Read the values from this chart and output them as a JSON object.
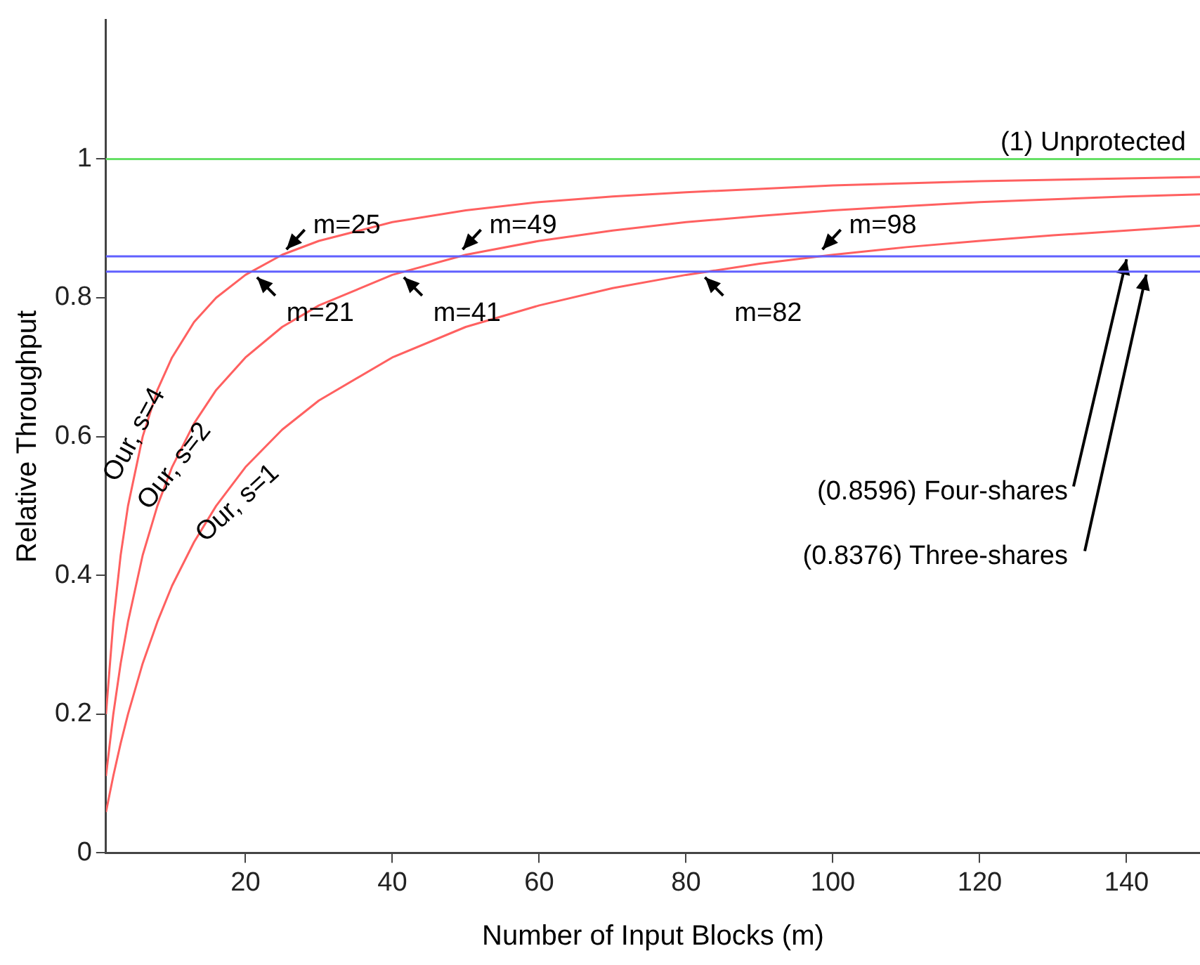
{
  "chart_data": {
    "type": "line",
    "xlabel": "Number of Input Blocks (m)",
    "ylabel": "Relative Throughput",
    "x": [
      1,
      2,
      3,
      4,
      6,
      8,
      10,
      13,
      16,
      20,
      25,
      30,
      40,
      50,
      60,
      70,
      80,
      90,
      100,
      110,
      120,
      130,
      140,
      150
    ],
    "series": [
      {
        "name": "Our, s=4",
        "color": "#ff6060",
        "values": [
          0.2,
          0.333,
          0.429,
          0.5,
          0.6,
          0.667,
          0.714,
          0.765,
          0.8,
          0.833,
          0.862,
          0.882,
          0.909,
          0.926,
          0.938,
          0.946,
          0.952,
          0.957,
          0.962,
          0.965,
          0.968,
          0.97,
          0.972,
          0.974
        ]
      },
      {
        "name": "Our, s=2",
        "color": "#ff6060",
        "values": [
          0.111,
          0.2,
          0.273,
          0.333,
          0.429,
          0.5,
          0.556,
          0.619,
          0.667,
          0.714,
          0.758,
          0.789,
          0.833,
          0.862,
          0.882,
          0.897,
          0.909,
          0.918,
          0.926,
          0.932,
          0.938,
          0.942,
          0.946,
          0.949
        ]
      },
      {
        "name": "Our, s=1",
        "color": "#ff6060",
        "values": [
          0.059,
          0.111,
          0.158,
          0.2,
          0.273,
          0.333,
          0.385,
          0.448,
          0.5,
          0.556,
          0.61,
          0.652,
          0.714,
          0.758,
          0.789,
          0.814,
          0.833,
          0.849,
          0.862,
          0.873,
          0.882,
          0.89,
          0.897,
          0.904
        ]
      }
    ],
    "xlim": [
      1,
      150
    ],
    "xticks": [
      20,
      40,
      60,
      80,
      100,
      120,
      140
    ],
    "ylim": [
      0,
      1.2
    ],
    "yticks": [
      0,
      0.2,
      0.4,
      0.6,
      0.8,
      1
    ],
    "ref_lines": [
      {
        "axis": "y",
        "value": 1,
        "label": "(1) Unprotected",
        "color": "#66e066"
      },
      {
        "axis": "y",
        "value": 0.8596,
        "label": "(0.8596) Four-shares",
        "color": "#6060ff"
      },
      {
        "axis": "y",
        "value": 0.8376,
        "label": "(0.8376) Three-shares",
        "color": "#6060ff"
      }
    ],
    "annotations": [
      {
        "text": "m=25",
        "x": 25,
        "y": 0.8596
      },
      {
        "text": "m=21",
        "x": 21,
        "y": 0.8376
      },
      {
        "text": "m=49",
        "x": 49,
        "y": 0.8596
      },
      {
        "text": "m=41",
        "x": 41,
        "y": 0.8376
      },
      {
        "text": "m=98",
        "x": 98,
        "y": 0.8596
      },
      {
        "text": "m=82",
        "x": 82,
        "y": 0.8376
      }
    ],
    "legend": false,
    "marker": "none",
    "line_style": "solid"
  }
}
